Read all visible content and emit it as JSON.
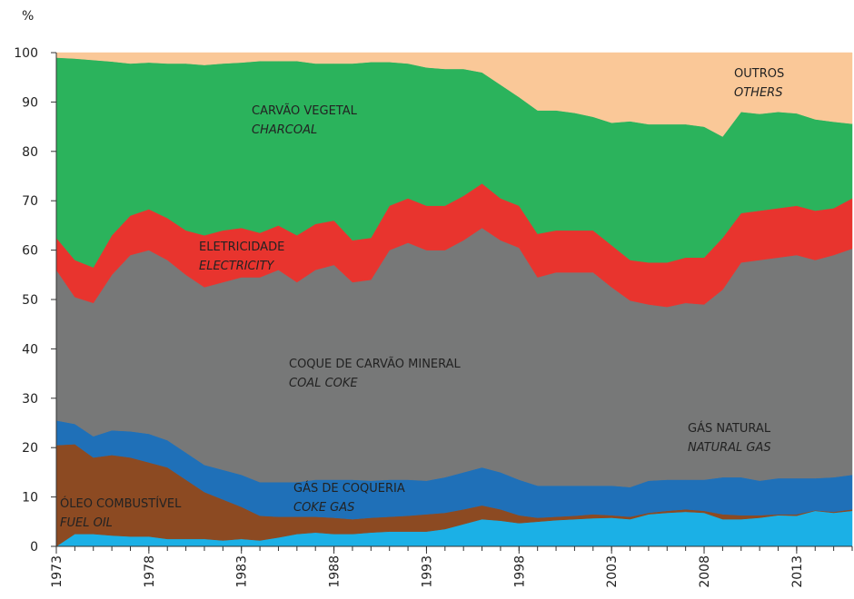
{
  "chart_data": {
    "type": "stacked_area",
    "y_label": "%",
    "xlim": [
      1973,
      2016
    ],
    "ylim": [
      0,
      100
    ],
    "yticks": [
      0,
      10,
      20,
      30,
      40,
      50,
      60,
      70,
      80,
      90,
      100
    ],
    "xticks": [
      1973,
      1978,
      1983,
      1988,
      1993,
      1998,
      2003,
      2008,
      2013
    ],
    "x": [
      1973,
      1974,
      1975,
      1976,
      1977,
      1978,
      1979,
      1980,
      1981,
      1982,
      1983,
      1984,
      1985,
      1986,
      1987,
      1988,
      1989,
      1990,
      1991,
      1992,
      1993,
      1994,
      1995,
      1996,
      1997,
      1998,
      1999,
      2000,
      2001,
      2002,
      2003,
      2004,
      2005,
      2006,
      2007,
      2008,
      2009,
      2010,
      2011,
      2012,
      2013,
      2014,
      2015,
      2016
    ],
    "series": [
      {
        "name": "GÁS NATURAL",
        "name_en": "NATURAL GAS",
        "color": "#1bb0e6",
        "values": [
          0,
          2.5,
          2.5,
          2.2,
          2,
          2,
          1.5,
          1.5,
          1.5,
          1.2,
          1.5,
          1.2,
          1.8,
          2.5,
          2.8,
          2.5,
          2.5,
          2.8,
          3,
          3,
          3,
          3.5,
          4.5,
          5.5,
          5.2,
          4.7,
          5,
          5.3,
          5.5,
          5.7,
          5.8,
          5.5,
          6.5,
          6.8,
          7,
          6.8,
          5.5,
          5.5,
          5.8,
          6.3,
          6.2,
          7.2,
          6.8,
          7.2
        ]
      },
      {
        "name": "ÓLEO COMBUSTÍVEL",
        "name_en": "FUEL OIL",
        "color": "#8c4a22",
        "values": [
          20.5,
          18.2,
          15.5,
          16.3,
          16,
          15,
          14.5,
          12,
          9.5,
          8.3,
          6.5,
          5,
          4.2,
          3.5,
          3.2,
          3.3,
          3,
          3,
          3,
          3.2,
          3.5,
          3.3,
          3,
          2.8,
          2.3,
          1.6,
          0.8,
          0.7,
          0.7,
          0.8,
          0.5,
          0.5,
          0.3,
          0.4,
          0.5,
          0.4,
          1,
          0.8,
          0.5,
          0.2,
          0.3,
          0.1,
          0.2,
          0.3
        ]
      },
      {
        "name": "GÁS DE COQUERIA",
        "name_en": "COKE GAS",
        "color": "#1f70b8",
        "values": [
          5,
          4.1,
          4.3,
          5,
          5.3,
          5.8,
          5.5,
          5.5,
          5.5,
          6,
          6.5,
          6.8,
          7,
          7,
          7.5,
          7.7,
          8,
          7.5,
          7.5,
          7.3,
          6.8,
          7.2,
          7.5,
          7.7,
          7.5,
          7.2,
          6.5,
          6.3,
          6.1,
          5.8,
          6,
          6,
          6.5,
          6.3,
          6,
          6.3,
          7.5,
          7.7,
          7,
          7.3,
          7.3,
          6.5,
          7,
          7
        ]
      },
      {
        "name": "COQUE DE CARVÃO MINERAL",
        "name_en": "COAL COKE",
        "color": "#777878",
        "values": [
          30.5,
          25.7,
          27,
          31.5,
          35.7,
          37.2,
          36.5,
          36,
          36,
          38,
          40,
          41.5,
          43,
          40.5,
          42.5,
          43.5,
          40,
          40.7,
          46.5,
          48,
          46.7,
          46,
          47,
          48.5,
          47,
          47,
          42.2,
          43.2,
          43.2,
          43.2,
          40.2,
          37.8,
          35.7,
          35,
          35.8,
          35.5,
          38,
          43.5,
          44.7,
          44.7,
          45.2,
          44.2,
          45,
          45.8
        ]
      },
      {
        "name": "ELETRICIDADE",
        "name_en": "ELECTRICITY",
        "color": "#e8342e",
        "values": [
          6.5,
          7.5,
          7.2,
          8,
          8,
          8.3,
          8.5,
          9,
          10.5,
          10.5,
          10,
          9,
          9,
          9.5,
          9.3,
          9,
          8.5,
          8.5,
          9,
          9,
          9,
          9,
          9,
          9,
          8.5,
          8.5,
          8.8,
          8.5,
          8.5,
          8.5,
          8.5,
          8.2,
          8.5,
          9,
          9.2,
          9.5,
          10.5,
          10,
          10,
          10,
          10,
          10,
          9.5,
          10.2
        ]
      },
      {
        "name": "CARVÃO VEGETAL",
        "name_en": "CHARCOAL",
        "color": "#2bb35c",
        "values": [
          36.5,
          40.8,
          42,
          35.2,
          30.8,
          29.7,
          31.3,
          33.8,
          34.5,
          33.8,
          33.5,
          34.8,
          33.3,
          35.3,
          32.5,
          31.8,
          35.8,
          35.6,
          29.1,
          27.3,
          28,
          27.7,
          25.7,
          22.5,
          23,
          22,
          25,
          24.3,
          23.8,
          23,
          24.8,
          28.1,
          28,
          28,
          27,
          26.5,
          20.5,
          20.5,
          19.6,
          19.5,
          18.7,
          18.5,
          17.5,
          15.1
        ]
      },
      {
        "name": "OUTROS",
        "name_en": "OTHERS",
        "color": "#fac898",
        "values": [
          1,
          1.2,
          1.5,
          1.8,
          2.2,
          2,
          2.2,
          2.2,
          2.5,
          2.2,
          2,
          1.7,
          1.7,
          1.7,
          2.2,
          2.2,
          2.2,
          1.9,
          1.9,
          2.2,
          3,
          3.3,
          3.3,
          4,
          6.5,
          9,
          11.7,
          11.7,
          12.2,
          13,
          14.2,
          13.9,
          14.5,
          14.5,
          14.5,
          15,
          17,
          12,
          12.4,
          12,
          12.3,
          13.5,
          14,
          14.4
        ]
      }
    ]
  }
}
